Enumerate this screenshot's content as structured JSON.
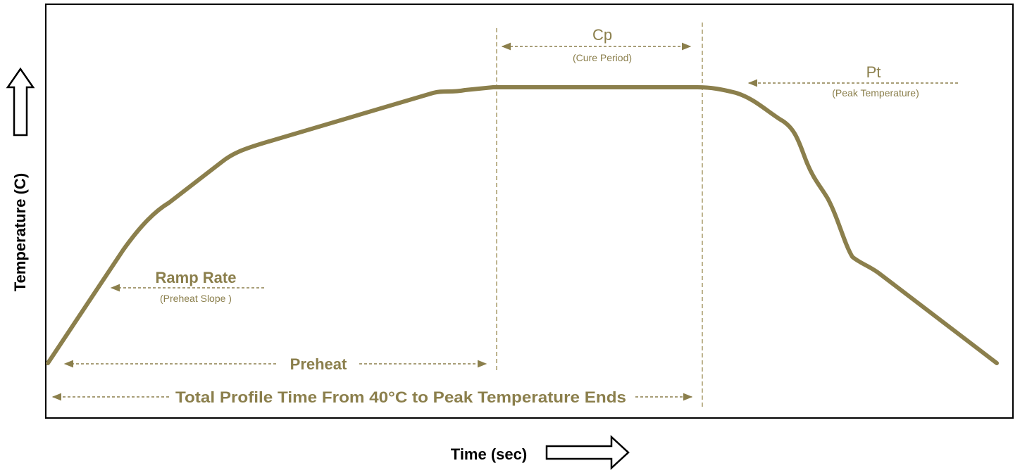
{
  "axes": {
    "y_title": "Temperature (C)",
    "x_title": "Time (sec)"
  },
  "annotations": {
    "cp": {
      "label": "Cp",
      "sub": "(Cure Period)"
    },
    "pt": {
      "label": "Pt",
      "sub": "(Peak Temperature)"
    },
    "ramp": {
      "label": "Ramp Rate",
      "sub": "(Preheat Slope )"
    },
    "preheat": {
      "label": "Preheat"
    },
    "total": {
      "label": "Total Profile Time From 40°C to Peak Temperature Ends"
    }
  },
  "colors": {
    "curve": "#8b7f4c",
    "dashed": "#a89c6a",
    "frame": "#000000",
    "axis_arrow_fill": "#ffffff"
  },
  "icons": [
    "up-arrow-icon",
    "right-arrow-icon"
  ]
}
